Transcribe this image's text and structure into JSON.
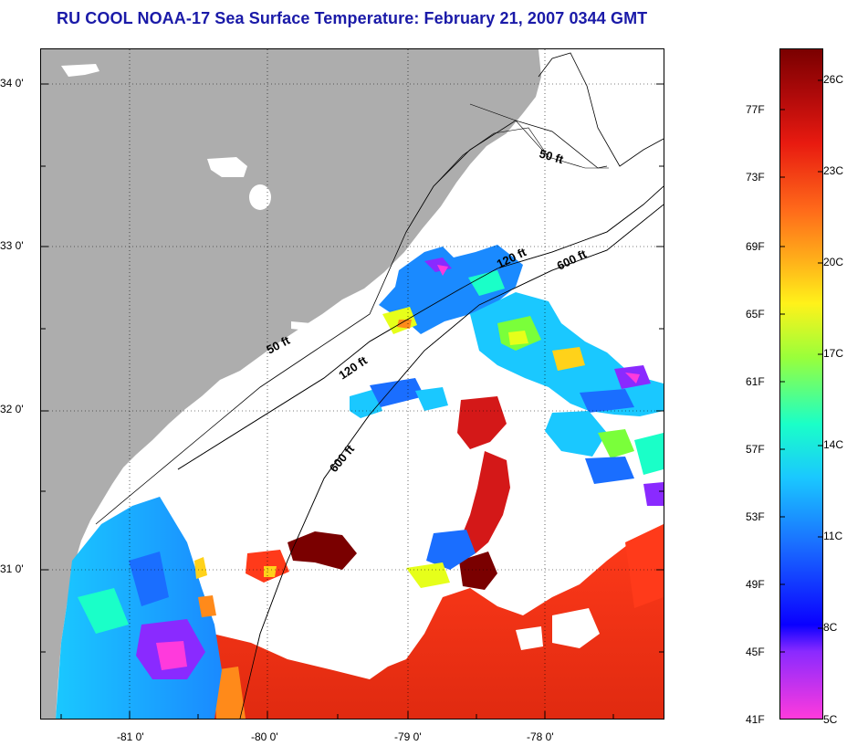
{
  "title": "RU COOL  NOAA-17  Sea Surface Temperature:  February 21, 2007 0344 GMT",
  "lat_labels": [
    "34 0'",
    "33 0'",
    "32 0'",
    "31 0'"
  ],
  "lon_labels": [
    "-81 0'",
    "-80 0'",
    "-79 0'",
    "-78 0'"
  ],
  "isobaths": [
    "50 ft",
    "50 ft",
    "120 ft",
    "120 ft",
    "600 ft",
    "600 ft"
  ],
  "colorbar": {
    "fahrenheit": [
      "77F",
      "73F",
      "69F",
      "65F",
      "61F",
      "57F",
      "53F",
      "49F",
      "45F",
      "41F"
    ],
    "celsius": [
      "26C",
      "23C",
      "20C",
      "17C",
      "14C",
      "11C",
      "8C",
      "5C"
    ],
    "colors_top_to_bottom": [
      "#7a0000",
      "#d41818",
      "#ff3a1a",
      "#ff8a1a",
      "#ffd21a",
      "#e6ff1a",
      "#7aff3a",
      "#1affc8",
      "#1ac8ff",
      "#1a6eff",
      "#0a00ff",
      "#8a2aff",
      "#ff3adc"
    ]
  },
  "colors": {
    "land": "#adadad",
    "title": "#1a1aa8",
    "no_data": "#ffffff"
  }
}
